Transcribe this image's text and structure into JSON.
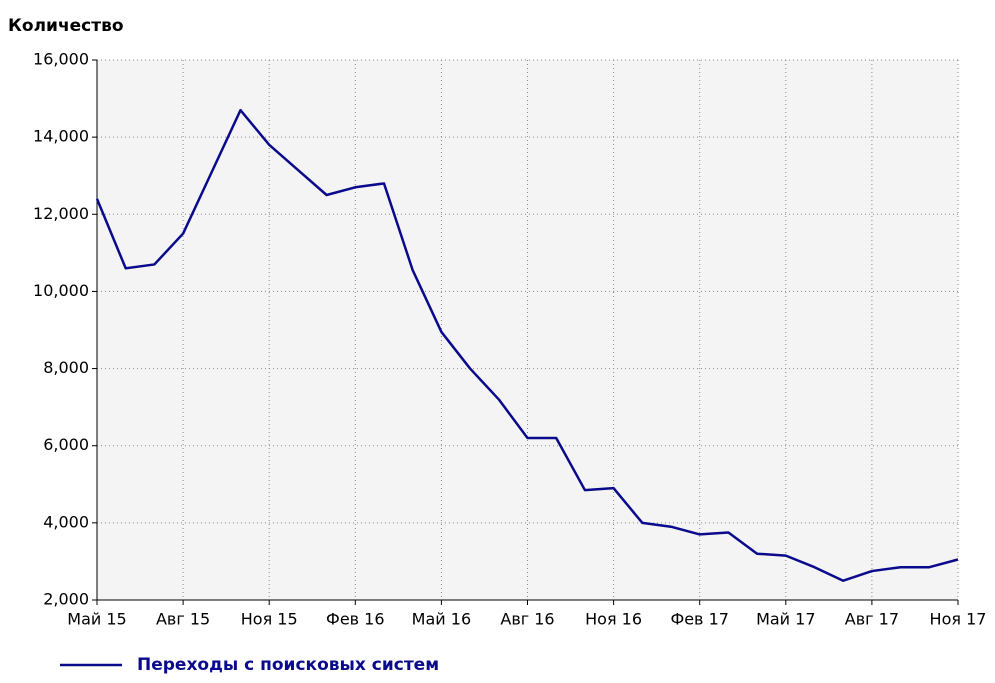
{
  "chart_data": {
    "type": "line",
    "title": "Количество",
    "categories": [
      "Май 15",
      null,
      null,
      "Авг 15",
      null,
      null,
      "Ноя 15",
      null,
      null,
      "Фев 16",
      null,
      null,
      "Май 16",
      null,
      null,
      "Авг 16",
      null,
      null,
      "Ноя 16",
      null,
      null,
      "Фев 17",
      null,
      null,
      "Май 17",
      null,
      null,
      "Авг 17",
      null,
      null,
      "Ноя 17"
    ],
    "series": [
      {
        "name": "Переходы с поисковых систем",
        "color": "#0a0a8c",
        "values": [
          12400,
          10600,
          10700,
          11500,
          13100,
          14700,
          13800,
          13150,
          12500,
          12700,
          12800,
          10550,
          8950,
          8000,
          7200,
          6200,
          6200,
          4850,
          4900,
          4000,
          3900,
          3700,
          3750,
          3200,
          3150,
          2850,
          2500,
          2750,
          2850,
          2850,
          3050
        ]
      }
    ],
    "ylim": [
      2000,
      16000
    ],
    "yticks": [
      {
        "value": 2000,
        "label": "2,000"
      },
      {
        "value": 4000,
        "label": "4,000"
      },
      {
        "value": 6000,
        "label": "6,000"
      },
      {
        "value": 8000,
        "label": "8,000"
      },
      {
        "value": 10000,
        "label": "10,000"
      },
      {
        "value": 12000,
        "label": "12,000"
      },
      {
        "value": 14000,
        "label": "14,000"
      },
      {
        "value": 16000,
        "label": "16,000"
      }
    ],
    "grid": true,
    "legend": "bottom"
  }
}
